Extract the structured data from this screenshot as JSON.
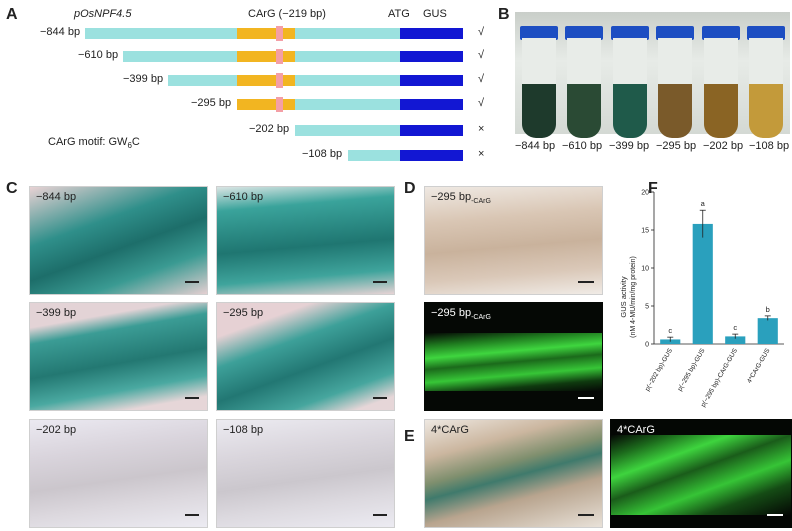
{
  "panels": {
    "A": "A",
    "B": "B",
    "C": "C",
    "D": "D",
    "E": "E",
    "F": "F"
  },
  "panelA": {
    "promoter": "pOsNPF4.5",
    "carg_label": "CArG (−219 bp)",
    "atg": "ATG",
    "gus": "GUS",
    "motif": "CArG motif: GW",
    "motif_sub": "6",
    "motif_end": "C",
    "constructs": [
      {
        "label": "−844 bp",
        "mark": "√"
      },
      {
        "label": "−610 bp",
        "mark": "√"
      },
      {
        "label": "−399 bp",
        "mark": "√"
      },
      {
        "label": "−295 bp",
        "mark": "√"
      },
      {
        "label": "−202 bp",
        "mark": "×"
      },
      {
        "label": "−108 bp",
        "mark": "×"
      }
    ]
  },
  "panelB": {
    "tubes": [
      "−844 bp",
      "−610 bp",
      "−399 bp",
      "−295 bp",
      "−202 bp",
      "−108 bp"
    ],
    "liquid_colors": [
      "#1e3a2c",
      "#2a4a34",
      "#1f5a4a",
      "#7a5a2a",
      "#8a6424",
      "#c39a3a"
    ]
  },
  "panelC": {
    "images": [
      "−844 bp",
      "−610 bp",
      "−399 bp",
      "−295 bp",
      "−202 bp",
      "−108 bp"
    ]
  },
  "panelD": {
    "top_label": "−295 bp",
    "top_sub": "-CArG",
    "bottom_label": "−295 bp",
    "bottom_sub": "-CArG"
  },
  "panelE": {
    "left_label": "4*CArG",
    "right_label": "4*CArG"
  },
  "chart_data": {
    "type": "bar",
    "ylabel": "GUS activity",
    "ylabel2": "(nM 4-MU/min/mg protein)",
    "ylim": [
      0,
      20
    ],
    "yticks": [
      0,
      5,
      10,
      15,
      20
    ],
    "categories": [
      "p(−202 bp)-GUS",
      "p(−295 bp)-GUS",
      "p(−295 bp)-CArG-GUS",
      "4*CArG-GUS"
    ],
    "values": [
      0.6,
      15.8,
      1.0,
      3.4
    ],
    "errors": [
      0.3,
      1.8,
      0.3,
      0.3
    ],
    "letters": [
      "c",
      "a",
      "c",
      "b"
    ],
    "color": "#2aa0bd"
  }
}
